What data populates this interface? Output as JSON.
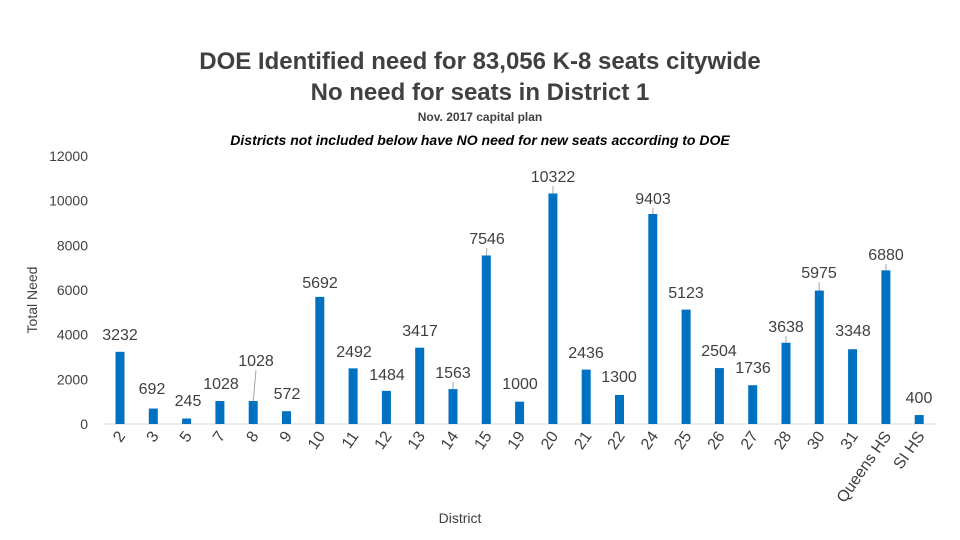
{
  "chart_data": {
    "type": "bar",
    "title": "DOE Identified need for 83,056 K-8 seats citywide",
    "subtitle": "No need for seats in District 1",
    "source_note": "Nov. 2017 capital plan",
    "annotation": "Districts not included below have NO need for new seats according to DOE",
    "xlabel": "District",
    "ylabel": "Total Need",
    "ylim": [
      0,
      12000
    ],
    "yticks": [
      0,
      2000,
      4000,
      6000,
      8000,
      10000,
      12000
    ],
    "grid": false,
    "color": "#0070C0",
    "categories": [
      "2",
      "3",
      "5",
      "7",
      "8",
      "9",
      "10",
      "11",
      "12",
      "13",
      "14",
      "15",
      "19",
      "20",
      "21",
      "22",
      "24",
      "25",
      "26",
      "27",
      "28",
      "30",
      "31",
      "Queens HS",
      "SI HS"
    ],
    "values": [
      3232,
      692,
      245,
      1028,
      1028,
      572,
      5692,
      2492,
      1484,
      3417,
      1563,
      7546,
      1000,
      10322,
      2436,
      1300,
      9403,
      5123,
      2504,
      1736,
      3638,
      5975,
      3348,
      6880,
      400
    ]
  }
}
